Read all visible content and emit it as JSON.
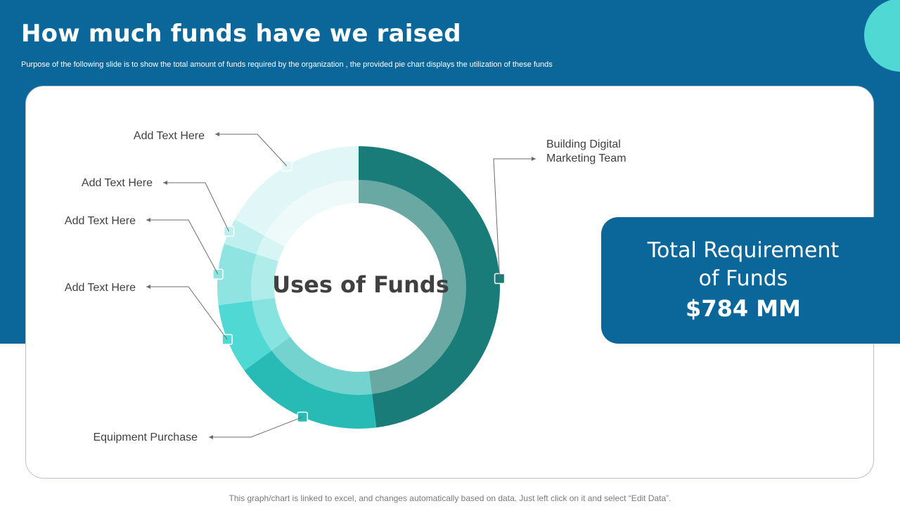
{
  "title": "How much funds have we raised",
  "subtitle": "Purpose of the following slide is to show the total amount of funds required by the organization , the provided pie chart displays the utilization of these funds",
  "total": {
    "title_line1": "Total Requirement",
    "title_line2": "of Funds",
    "value": "$784 MM"
  },
  "footer": "This graph/chart is linked to excel, and changes automatically based on data. Just left click on it and select “Edit Data”.",
  "colors": {
    "band": "#0b6699",
    "accent": "#4fd8d4"
  },
  "chart_data": {
    "type": "pie",
    "title": "Uses of Funds",
    "categories": [
      "Building Digital Marketing Team",
      "Equipment Purchase",
      "Add Text Here",
      "Add Text Here",
      "Add Text Here",
      "Add Text Here"
    ],
    "values": [
      48,
      17,
      8,
      7,
      3,
      17
    ],
    "label_lines": [
      [
        "Building Digital",
        "Marketing Team"
      ],
      [
        "Equipment Purchase"
      ],
      [
        "Add Text Here"
      ],
      [
        "Add Text Here"
      ],
      [
        "Add Text Here"
      ],
      [
        "Add Text Here"
      ]
    ],
    "colors": [
      "#1a7c78",
      "#28bbb5",
      "#4fd8d4",
      "#8fe4e2",
      "#bff0ef",
      "#e1f6f6"
    ],
    "inner_colors": [
      "#6aa8a4",
      "#74d3cf",
      "#86e3e0",
      "#b0ecea",
      "#d6f5f4",
      "#eefafa"
    ]
  }
}
